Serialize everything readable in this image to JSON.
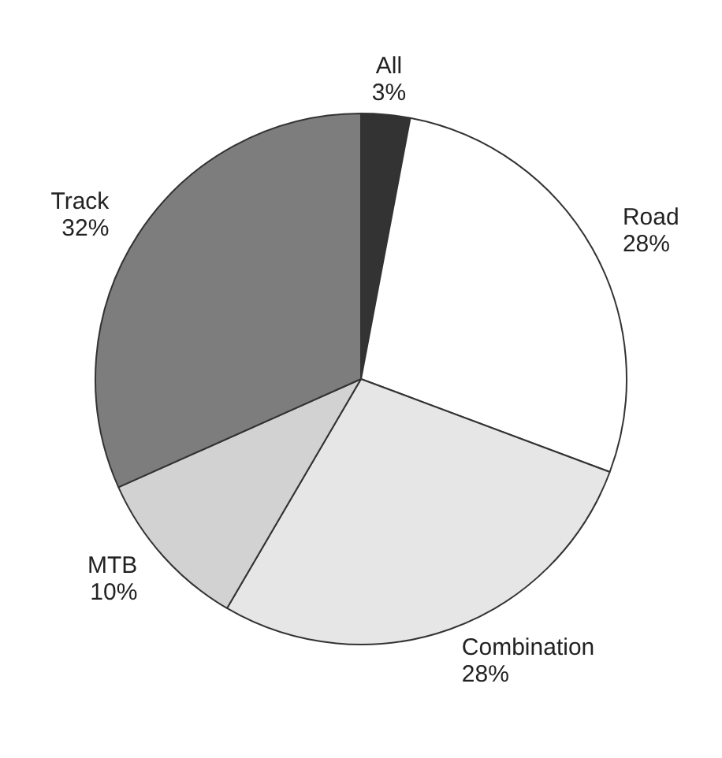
{
  "chart_data": {
    "type": "pie",
    "categories": [
      "All",
      "Road",
      "Combination",
      "MTB",
      "Track"
    ],
    "values": [
      3,
      28,
      28,
      10,
      32
    ],
    "value_labels": [
      "3%",
      "28%",
      "28%",
      "10%",
      "32%"
    ],
    "colors": [
      "#333333",
      "#ffffff",
      "#e6e6e6",
      "#d2d2d2",
      "#7d7d7d"
    ],
    "legend": false
  }
}
